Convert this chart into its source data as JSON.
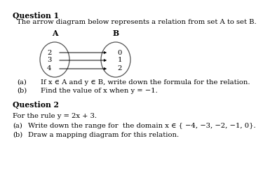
{
  "title1": "Question 1",
  "desc1": "The arrow diagram below represents a relation from set A to set B.",
  "set_A_label": "A",
  "set_B_label": "B",
  "set_A_values": [
    "2",
    "3",
    "4"
  ],
  "set_B_values": [
    "0",
    "1",
    "2"
  ],
  "arrows": [
    [
      0,
      0
    ],
    [
      1,
      1
    ],
    [
      2,
      2
    ]
  ],
  "qa1_label": "(a)",
  "qa1_text": "If x ∈ A and y ∈ B, write down the formula for the relation.",
  "qb1_label": "(b)",
  "qb1_text": "Find the value of x when y = −1.",
  "title2": "Question 2",
  "desc2": "For the rule y = 2x + 3.",
  "qa2_label": "(a)",
  "qa2_text": "Write down the range for  the domain x ∈ { −4, −3, −2, −1, 0}.",
  "qb2_label": "(b)",
  "qb2_text": "Draw a mapping diagram for this relation.",
  "bg_color": "#ffffff",
  "text_color": "#000000",
  "ellipse_color": "#555555",
  "main_fontsize": 7.2,
  "label_fontsize": 7.2,
  "title_fontsize": 7.8
}
